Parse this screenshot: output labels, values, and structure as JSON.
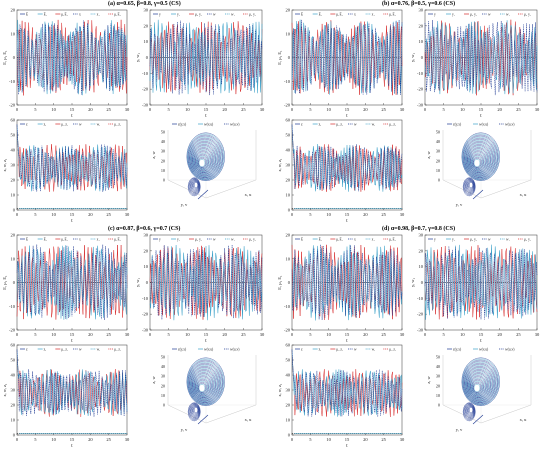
{
  "panel_titles": [
    "(a) α=0.65, β=0.8, γ=0.5 (CS)",
    "(b) α=0.76, β=0.5, γ=0.6 (CS)",
    "(c) α=0.87, β=0.6, γ=0.7 (CS)",
    "(d) α=0.98, β=0.7, γ=0.8 (CS)"
  ],
  "colors": {
    "blue_dark": "#1f3a93",
    "cyan": "#3aa0c8",
    "red": "#d62728",
    "grey": "#555555"
  },
  "chart_data": [
    {
      "type": "line",
      "panel": "a",
      "subplots": [
        {
          "kind": "time",
          "ylabel": "E, μ₁ E₁",
          "xlabel": "t",
          "xlim": [
            0,
            30
          ],
          "ylim": [
            -20,
            20
          ],
          "xticks": [
            0,
            5,
            10,
            15,
            20,
            25,
            30
          ],
          "yticks": [
            -20,
            -10,
            0,
            10,
            20
          ],
          "legend": [
            "E",
            "E₁",
            "μ₁E₁",
            "x",
            "x₁",
            "μ₁E₁"
          ]
        },
        {
          "kind": "time",
          "ylabel": "y, w₁",
          "xlabel": "t",
          "xlim": [
            0,
            30
          ],
          "ylim": [
            -30,
            30
          ],
          "xticks": [
            0,
            5,
            10,
            15,
            20,
            25,
            30
          ],
          "yticks": [
            -30,
            -20,
            -10,
            0,
            10,
            20,
            30
          ],
          "legend": [
            "y",
            "y₁",
            "μ₂ y₁",
            "w",
            "w₁",
            "μ₂ y₁"
          ]
        },
        {
          "kind": "time",
          "ylabel": "z, w, z₁",
          "xlabel": "t",
          "xlim": [
            0,
            30
          ],
          "ylim": [
            0,
            60
          ],
          "xticks": [
            0,
            5,
            10,
            15,
            20,
            25,
            30
          ],
          "yticks": [
            0,
            10,
            20,
            30,
            40,
            50,
            60
          ],
          "legend": [
            "z",
            "z₁",
            "μ₃ z₁",
            "w",
            "w₁",
            "μ₃ z₁"
          ]
        },
        {
          "kind": "attractor3d",
          "zlabel": "z, w",
          "xlabel": "y, v",
          "ylabel": "x, u",
          "zticks": [
            0,
            10,
            20,
            30,
            40,
            50
          ],
          "legend": [
            "z(y,x)",
            "w(v,u)",
            "w(u,v)"
          ]
        }
      ]
    },
    {
      "type": "line",
      "panel": "b",
      "subplots": [
        {
          "kind": "time",
          "ylabel": "E, μ₁ E₁",
          "xlabel": "t",
          "xlim": [
            0,
            30
          ],
          "ylim": [
            -20,
            20
          ],
          "xticks": [
            0,
            5,
            10,
            15,
            20,
            25,
            30
          ],
          "yticks": [
            -20,
            -10,
            0,
            10,
            20
          ],
          "legend": [
            "E",
            "E₁",
            "μ₁E₁",
            "x",
            "x₁",
            "μ₁E₁"
          ]
        },
        {
          "kind": "time",
          "ylabel": "y, w₁",
          "xlabel": "t",
          "xlim": [
            0,
            30
          ],
          "ylim": [
            -30,
            30
          ],
          "xticks": [
            0,
            5,
            10,
            15,
            20,
            25,
            30
          ],
          "yticks": [
            -30,
            -20,
            -10,
            0,
            10,
            20,
            30
          ],
          "legend": [
            "y",
            "y₁",
            "μ₂ y₁",
            "w",
            "w₁",
            "μ₂ y₁"
          ]
        },
        {
          "kind": "time",
          "ylabel": "z, w, z₁",
          "xlabel": "t",
          "xlim": [
            0,
            30
          ],
          "ylim": [
            0,
            60
          ],
          "xticks": [
            0,
            5,
            10,
            15,
            20,
            25,
            30
          ],
          "yticks": [
            0,
            10,
            20,
            30,
            40,
            50,
            60
          ],
          "legend": [
            "z",
            "z₁",
            "μ₃ z₁",
            "w",
            "w₁",
            "μ₃ z₁"
          ]
        },
        {
          "kind": "attractor3d",
          "zlabel": "z, w",
          "xlabel": "y, v",
          "ylabel": "x, u",
          "zticks": [
            0,
            10,
            20,
            30,
            40,
            50
          ],
          "legend": [
            "z(y,x)",
            "w(v,u)",
            "w(u,v)"
          ]
        }
      ]
    },
    {
      "type": "line",
      "panel": "c",
      "subplots": [
        {
          "kind": "time",
          "ylabel": "E, μ₁ E₁",
          "xlabel": "t",
          "xlim": [
            0,
            30
          ],
          "ylim": [
            -20,
            20
          ],
          "xticks": [
            0,
            5,
            10,
            15,
            20,
            25,
            30
          ],
          "yticks": [
            -20,
            -10,
            0,
            10,
            20
          ],
          "legend": [
            "E",
            "E₁",
            "μ₁E₁",
            "x",
            "x₁",
            "μ₁E₁"
          ]
        },
        {
          "kind": "time",
          "ylabel": "y, w₁",
          "xlabel": "t",
          "xlim": [
            0,
            30
          ],
          "ylim": [
            -30,
            30
          ],
          "xticks": [
            0,
            5,
            10,
            15,
            20,
            25,
            30
          ],
          "yticks": [
            -30,
            -20,
            -10,
            0,
            10,
            20,
            30
          ],
          "legend": [
            "y",
            "y₁",
            "μ₂ y₁",
            "w",
            "w₁",
            "μ₂ y₁"
          ]
        },
        {
          "kind": "time",
          "ylabel": "z, w, z₁",
          "xlabel": "t",
          "xlim": [
            0,
            30
          ],
          "ylim": [
            0,
            60
          ],
          "xticks": [
            0,
            5,
            10,
            15,
            20,
            25,
            30
          ],
          "yticks": [
            0,
            10,
            20,
            30,
            40,
            50,
            60
          ],
          "legend": [
            "z",
            "z₁",
            "μ₃ z₁",
            "w",
            "w₁",
            "μ₃ z₁"
          ]
        },
        {
          "kind": "attractor3d",
          "zlabel": "z, w",
          "xlabel": "y, v",
          "ylabel": "x, u",
          "zticks": [
            0,
            10,
            20,
            30,
            40,
            50
          ],
          "legend": [
            "z(y,x)",
            "w(v,u)",
            "w(u,v)"
          ]
        }
      ]
    },
    {
      "type": "line",
      "panel": "d",
      "subplots": [
        {
          "kind": "time",
          "ylabel": "E, μ₁ E₁",
          "xlabel": "t",
          "xlim": [
            0,
            30
          ],
          "ylim": [
            -20,
            20
          ],
          "xticks": [
            0,
            5,
            10,
            15,
            20,
            25,
            30
          ],
          "yticks": [
            -20,
            -10,
            0,
            10,
            20
          ],
          "legend": [
            "E",
            "E₁",
            "μ₁E₁",
            "x",
            "x₁",
            "μ₁E₁"
          ]
        },
        {
          "kind": "time",
          "ylabel": "y, w₁",
          "xlabel": "t",
          "xlim": [
            0,
            30
          ],
          "ylim": [
            -30,
            30
          ],
          "xticks": [
            0,
            5,
            10,
            15,
            20,
            25,
            30
          ],
          "yticks": [
            -30,
            -20,
            -10,
            0,
            10,
            20,
            30
          ],
          "legend": [
            "y",
            "y₁",
            "μ₂ y₁",
            "w",
            "w₁",
            "μ₂ y₁"
          ]
        },
        {
          "kind": "time",
          "ylabel": "z, w, z₁",
          "xlabel": "t",
          "xlim": [
            0,
            30
          ],
          "ylim": [
            0,
            60
          ],
          "xticks": [
            0,
            5,
            10,
            15,
            20,
            25,
            30
          ],
          "yticks": [
            0,
            10,
            20,
            30,
            40,
            50,
            60
          ],
          "legend": [
            "z",
            "z₁",
            "μ₃ z₁",
            "w",
            "w₁",
            "μ₃ z₁"
          ]
        },
        {
          "kind": "attractor3d",
          "zlabel": "z, w",
          "xlabel": "y, v",
          "ylabel": "x, u",
          "zticks": [
            0,
            10,
            20,
            30,
            40,
            50
          ],
          "legend": [
            "z(y,x)",
            "w(v,u)",
            "w(u,v)"
          ]
        }
      ]
    }
  ]
}
